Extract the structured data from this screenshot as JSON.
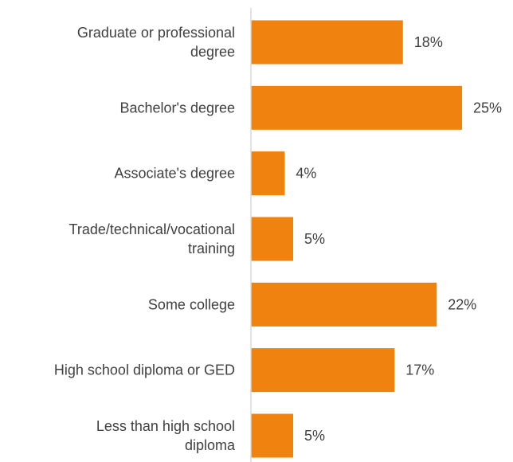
{
  "chart_data": {
    "type": "bar",
    "orientation": "horizontal",
    "categories": [
      "Graduate or professional degree",
      "Bachelor's degree",
      "Associate's degree",
      "Trade/technical/vocational training",
      "Some college",
      "High school diploma or GED",
      "Less than high school diploma"
    ],
    "category_lines": [
      [
        "Graduate or professional",
        "degree"
      ],
      [
        "Bachelor's degree"
      ],
      [
        "Associate's degree"
      ],
      [
        "Trade/technical/vocational",
        "training"
      ],
      [
        "Some college"
      ],
      [
        "High school diploma or GED"
      ],
      [
        "Less than high school",
        "diploma"
      ]
    ],
    "values": [
      18,
      25,
      4,
      5,
      22,
      17,
      5
    ],
    "data_labels": [
      "18%",
      "25%",
      "4%",
      "5%",
      "22%",
      "17%",
      "5%"
    ],
    "unit": "%",
    "xlim": [
      0,
      25
    ],
    "bar_color": "#f0820f",
    "axis_color": "#d9d9d9",
    "text_color": "#404040",
    "grid": false,
    "legend": "none"
  }
}
